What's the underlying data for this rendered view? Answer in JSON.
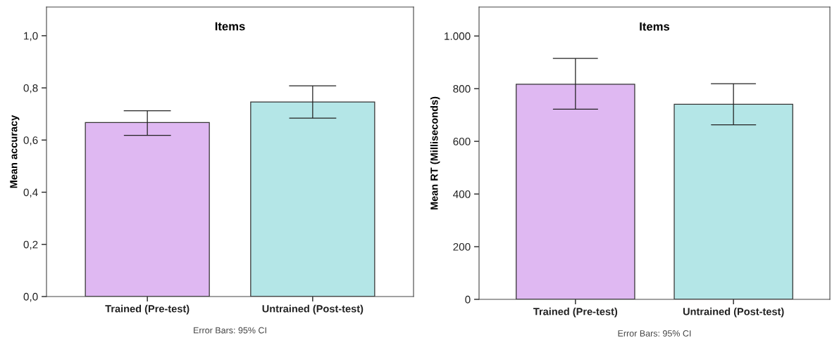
{
  "chart_data": [
    {
      "type": "bar",
      "title": "Items",
      "ylabel": "Mean accuracy",
      "categories": [
        "Trained (Pre-test)",
        "Untrained (Post-test)"
      ],
      "values": [
        0.667,
        0.746
      ],
      "colors": [
        "#dfb8f2",
        "#b4e6e7"
      ],
      "errors": [
        [
          0.618,
          0.712
        ],
        [
          0.684,
          0.808
        ]
      ],
      "ylim": [
        0,
        1.11
      ],
      "yticks": [
        {
          "value": 0,
          "label": "0,0"
        },
        {
          "value": 0.2,
          "label": "0,2"
        },
        {
          "value": 0.4,
          "label": "0,4"
        },
        {
          "value": 0.6,
          "label": "0,6"
        },
        {
          "value": 0.8,
          "label": "0,8"
        },
        {
          "value": 1.0,
          "label": "1,0"
        }
      ],
      "annotations": [
        "Error Bars: 95% CI"
      ],
      "grid": false,
      "legend": false
    },
    {
      "type": "bar",
      "title": "Items",
      "ylabel": "Mean RT (Milliseconds)",
      "categories": [
        "Trained (Pre-test)",
        "Untrained (Post-test)"
      ],
      "values": [
        817,
        741
      ],
      "colors": [
        "#dfb8f2",
        "#b4e6e7"
      ],
      "errors": [
        [
          722,
          915
        ],
        [
          663,
          819
        ]
      ],
      "ylim": [
        0,
        1110
      ],
      "yticks": [
        0,
        200,
        400,
        600,
        800,
        {
          "value": 1000,
          "label": "1.000"
        }
      ],
      "annotations": [
        "Error Bars: 95% CI"
      ],
      "grid": false,
      "legend": false
    }
  ]
}
